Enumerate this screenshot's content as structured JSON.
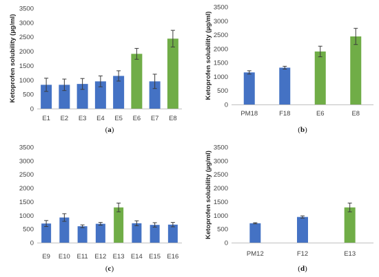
{
  "chart_data": [
    {
      "type": "bar",
      "panel_label": "a",
      "ylabel": "Ketoprofen solubility (µg/ml)",
      "ylim": [
        0,
        3500
      ],
      "yticks": [
        0,
        500,
        1000,
        1500,
        2000,
        2500,
        3000,
        3500
      ],
      "categories": [
        "E1",
        "E2",
        "E3",
        "E4",
        "E5",
        "E6",
        "E7",
        "E8"
      ],
      "values": [
        830,
        830,
        860,
        950,
        1140,
        1910,
        950,
        2440
      ],
      "errors": [
        230,
        200,
        190,
        190,
        180,
        190,
        250,
        290
      ],
      "colors": [
        "#4472C4",
        "#4472C4",
        "#4472C4",
        "#4472C4",
        "#4472C4",
        "#70AD47",
        "#4472C4",
        "#70AD47"
      ],
      "grid": false
    },
    {
      "type": "bar",
      "panel_label": "b",
      "ylabel": "Ketoprofen solubility (µg/ml)",
      "ylim": [
        0,
        3500
      ],
      "yticks": [
        0,
        500,
        1000,
        1500,
        2000,
        2500,
        3000,
        3500
      ],
      "categories": [
        "PM18",
        "F18",
        "E6",
        "E8"
      ],
      "values": [
        1150,
        1320,
        1900,
        2440
      ],
      "errors": [
        60,
        50,
        190,
        290
      ],
      "colors": [
        "#4472C4",
        "#4472C4",
        "#70AD47",
        "#70AD47"
      ],
      "grid": false
    },
    {
      "type": "bar",
      "panel_label": "c",
      "ylabel": "",
      "ylim": [
        0,
        3500
      ],
      "yticks": [
        0,
        500,
        1000,
        1500,
        2000,
        2500,
        3000,
        3500
      ],
      "categories": [
        "E9",
        "E10",
        "E11",
        "E12",
        "E13",
        "E14",
        "E15",
        "E16"
      ],
      "values": [
        700,
        920,
        600,
        690,
        1290,
        710,
        650,
        660
      ],
      "errors": [
        110,
        140,
        50,
        50,
        160,
        90,
        80,
        80
      ],
      "colors": [
        "#4472C4",
        "#4472C4",
        "#4472C4",
        "#4472C4",
        "#70AD47",
        "#4472C4",
        "#4472C4",
        "#4472C4"
      ],
      "grid": false
    },
    {
      "type": "bar",
      "panel_label": "d",
      "ylabel": "Ketoprofen solubility (µg/ml)",
      "ylim": [
        0,
        3500
      ],
      "yticks": [
        0,
        500,
        1000,
        1500,
        2000,
        2500,
        3000,
        3500
      ],
      "categories": [
        "PM12",
        "F12",
        "E13"
      ],
      "values": [
        710,
        940,
        1290
      ],
      "errors": [
        20,
        40,
        160
      ],
      "colors": [
        "#4472C4",
        "#4472C4",
        "#70AD47"
      ],
      "grid": false
    }
  ]
}
